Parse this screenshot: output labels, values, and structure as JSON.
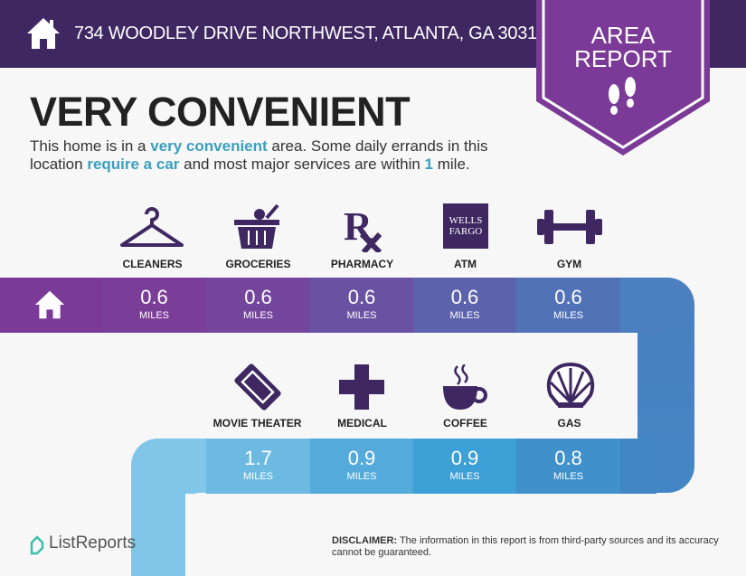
{
  "header": {
    "address": "734 WOODLEY DRIVE NORTHWEST, ATLANTA, GA 30318",
    "badge_line1": "AREA",
    "badge_line2": "REPORT"
  },
  "title": "VERY CONVENIENT",
  "description": {
    "p1": "This home is in a ",
    "h1": "very convenient",
    "p2": " area. Some daily errands in this location ",
    "h2": "require a car",
    "p3": " and most major services are within ",
    "h3": "1",
    "p4": " mile."
  },
  "row1": [
    {
      "label": "CLEANERS",
      "value": "0.6",
      "unit": "MILES",
      "icon": "hanger-icon"
    },
    {
      "label": "GROCERIES",
      "value": "0.6",
      "unit": "MILES",
      "icon": "basket-icon"
    },
    {
      "label": "PHARMACY",
      "value": "0.6",
      "unit": "MILES",
      "icon": "rx-icon"
    },
    {
      "label": "ATM",
      "value": "0.6",
      "unit": "MILES",
      "icon": "wells-fargo-logo",
      "logo_text": "WELLS FARGO"
    },
    {
      "label": "GYM",
      "value": "0.6",
      "unit": "MILES",
      "icon": "dumbbell-icon"
    }
  ],
  "row2": [
    {
      "label": "MOVIE THEATER",
      "value": "1.7",
      "unit": "MILES",
      "icon": "ticket-icon"
    },
    {
      "label": "MEDICAL",
      "value": "0.9",
      "unit": "MILES",
      "icon": "cross-icon"
    },
    {
      "label": "COFFEE",
      "value": "0.9",
      "unit": "MILES",
      "icon": "coffee-icon"
    },
    {
      "label": "GAS",
      "value": "0.8",
      "unit": "MILES",
      "icon": "shell-icon"
    }
  ],
  "footer": {
    "logo": "ListReports",
    "disclaimer_label": "DISCLAIMER:",
    "disclaimer": " The information in this report is from third-party sources and its accuracy cannot be guaranteed."
  },
  "colors": {
    "header": "#3f2862",
    "badge": "#7b3a97",
    "accent": "#3a9fbf",
    "icon": "#3f2862"
  }
}
